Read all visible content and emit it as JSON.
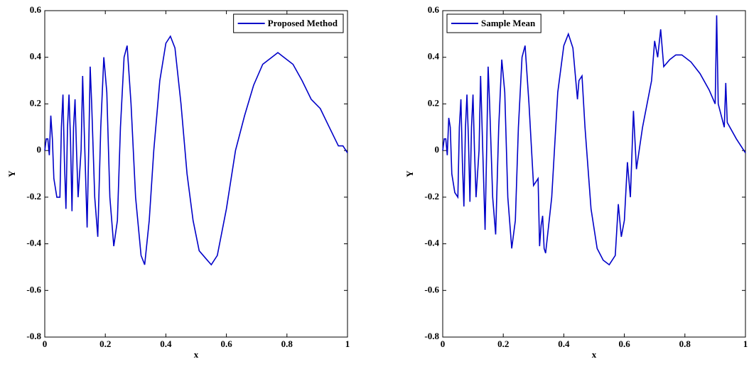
{
  "chart_data": [
    {
      "type": "line",
      "xlabel": "x",
      "ylabel": "Y",
      "legend": "upper right",
      "xlim": [
        0,
        1
      ],
      "ylim": [
        -0.8,
        0.6
      ],
      "xticks": [
        0,
        0.2,
        0.4,
        0.6,
        0.8,
        1
      ],
      "yticks": [
        -0.8,
        -0.6,
        -0.4,
        -0.2,
        0,
        0.2,
        0.4,
        0.6
      ],
      "series": [
        {
          "name": "Proposed Method",
          "color": "#0000c8",
          "x": [
            0,
            0.005,
            0.01,
            0.015,
            0.02,
            0.025,
            0.03,
            0.04,
            0.05,
            0.055,
            0.06,
            0.065,
            0.07,
            0.075,
            0.08,
            0.085,
            0.09,
            0.095,
            0.1,
            0.105,
            0.11,
            0.12,
            0.125,
            0.13,
            0.14,
            0.145,
            0.15,
            0.155,
            0.165,
            0.175,
            0.185,
            0.195,
            0.205,
            0.215,
            0.228,
            0.24,
            0.25,
            0.262,
            0.272,
            0.285,
            0.3,
            0.318,
            0.33,
            0.345,
            0.36,
            0.38,
            0.4,
            0.415,
            0.43,
            0.45,
            0.47,
            0.49,
            0.51,
            0.53,
            0.55,
            0.57,
            0.6,
            0.63,
            0.66,
            0.69,
            0.72,
            0.75,
            0.77,
            0.79,
            0.82,
            0.85,
            0.88,
            0.91,
            0.94,
            0.97,
            0.985,
            1
          ],
          "values": [
            0,
            0.05,
            0.05,
            -0.02,
            0.15,
            0.05,
            -0.12,
            -0.2,
            -0.2,
            0.1,
            0.24,
            -0.05,
            -0.25,
            0.1,
            0.24,
            0.05,
            -0.26,
            0.1,
            0.22,
            0,
            -0.2,
            0,
            0.32,
            0.1,
            -0.33,
            0,
            0.36,
            0.2,
            -0.2,
            -0.37,
            0.1,
            0.4,
            0.25,
            -0.2,
            -0.41,
            -0.3,
            0.1,
            0.4,
            0.45,
            0.2,
            -0.2,
            -0.45,
            -0.49,
            -0.3,
            0,
            0.3,
            0.46,
            0.49,
            0.44,
            0.2,
            -0.1,
            -0.3,
            -0.43,
            -0.46,
            -0.49,
            -0.45,
            -0.25,
            0,
            0.15,
            0.28,
            0.37,
            0.4,
            0.42,
            0.4,
            0.37,
            0.3,
            0.22,
            0.18,
            0.1,
            0.02,
            0.02,
            -0.01
          ]
        }
      ]
    },
    {
      "type": "line",
      "xlabel": "x",
      "ylabel": "Y",
      "legend": "upper left",
      "xlim": [
        0,
        1
      ],
      "ylim": [
        -0.8,
        0.6
      ],
      "xticks": [
        0,
        0.2,
        0.4,
        0.6,
        0.8,
        1
      ],
      "yticks": [
        -0.8,
        -0.6,
        -0.4,
        -0.2,
        0,
        0.2,
        0.4,
        0.6
      ],
      "series": [
        {
          "name": "Sample Mean",
          "color": "#0000c8",
          "x": [
            0,
            0.005,
            0.01,
            0.015,
            0.02,
            0.025,
            0.03,
            0.04,
            0.05,
            0.055,
            0.06,
            0.065,
            0.07,
            0.075,
            0.08,
            0.085,
            0.09,
            0.095,
            0.1,
            0.105,
            0.11,
            0.12,
            0.125,
            0.13,
            0.14,
            0.145,
            0.15,
            0.155,
            0.165,
            0.175,
            0.185,
            0.195,
            0.205,
            0.215,
            0.228,
            0.24,
            0.25,
            0.262,
            0.272,
            0.285,
            0.3,
            0.315,
            0.32,
            0.325,
            0.33,
            0.335,
            0.34,
            0.36,
            0.38,
            0.4,
            0.415,
            0.43,
            0.445,
            0.45,
            0.46,
            0.47,
            0.49,
            0.51,
            0.53,
            0.55,
            0.57,
            0.58,
            0.59,
            0.6,
            0.61,
            0.62,
            0.63,
            0.64,
            0.66,
            0.69,
            0.7,
            0.71,
            0.72,
            0.73,
            0.75,
            0.77,
            0.79,
            0.82,
            0.85,
            0.88,
            0.9,
            0.905,
            0.91,
            0.93,
            0.935,
            0.94,
            0.97,
            0.985,
            1
          ],
          "values": [
            0,
            0.05,
            0.05,
            -0.02,
            0.14,
            0.1,
            -0.1,
            -0.18,
            -0.2,
            0.1,
            0.22,
            -0.05,
            -0.24,
            0.1,
            0.24,
            0.05,
            -0.22,
            0.1,
            0.24,
            0,
            -0.2,
            0,
            0.32,
            0.1,
            -0.34,
            0,
            0.36,
            0.2,
            -0.2,
            -0.36,
            0.1,
            0.39,
            0.25,
            -0.2,
            -0.42,
            -0.3,
            0.1,
            0.4,
            0.45,
            0.2,
            -0.15,
            -0.12,
            -0.41,
            -0.32,
            -0.28,
            -0.42,
            -0.44,
            -0.2,
            0.25,
            0.45,
            0.5,
            0.44,
            0.22,
            0.3,
            0.32,
            0.1,
            -0.25,
            -0.42,
            -0.47,
            -0.49,
            -0.45,
            -0.23,
            -0.37,
            -0.3,
            -0.05,
            -0.2,
            0.17,
            -0.08,
            0.1,
            0.3,
            0.47,
            0.4,
            0.52,
            0.36,
            0.39,
            0.41,
            0.41,
            0.38,
            0.33,
            0.26,
            0.2,
            0.58,
            0.2,
            0.1,
            0.29,
            0.12,
            0.05,
            0.02,
            -0.01
          ]
        }
      ]
    }
  ]
}
